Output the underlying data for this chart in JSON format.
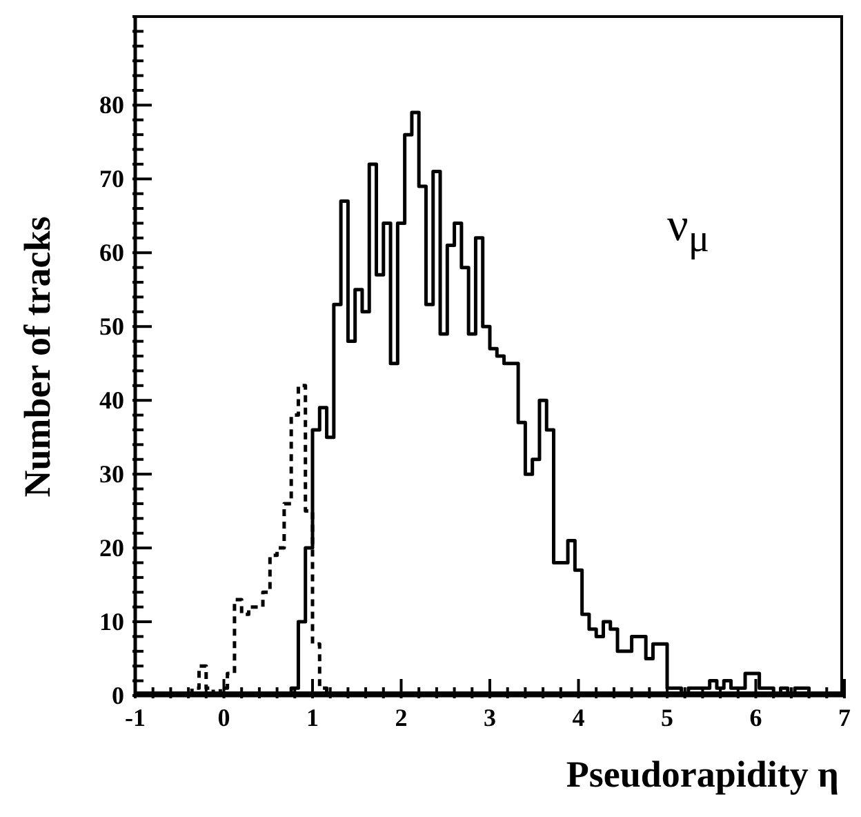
{
  "chart_data": {
    "type": "histogram",
    "xlabel": "Pseudorapidity η",
    "ylabel": "Number of tracks",
    "annotations": [
      "ν$_{μ}$"
    ],
    "bins": [
      -0.36,
      -0.28,
      -0.2,
      -0.12,
      -0.04,
      0.04,
      0.12,
      0.2,
      0.28,
      0.36,
      0.44,
      0.52,
      0.6,
      0.68,
      0.76,
      0.84,
      0.92,
      1.0,
      1.08,
      1.16,
      1.24,
      1.32,
      1.4,
      1.48,
      1.56,
      1.64,
      1.72,
      1.8,
      1.88,
      1.96,
      2.04,
      2.12,
      2.2,
      2.28,
      2.36,
      2.44,
      2.52,
      2.6,
      2.68,
      2.76,
      2.84,
      2.92,
      3.0,
      3.08,
      3.16,
      3.24,
      3.32,
      3.4,
      3.48,
      3.56,
      3.64,
      3.72,
      3.8,
      3.88,
      3.96,
      4.04,
      4.12,
      4.2,
      4.28,
      4.36,
      4.44,
      4.52,
      4.6,
      4.68,
      4.76,
      4.84,
      4.92,
      5.0,
      5.08,
      5.16,
      5.24,
      5.32,
      5.4,
      5.48,
      5.56,
      5.64,
      5.72,
      5.8,
      5.88,
      5.96,
      6.04,
      6.12,
      6.2,
      6.28,
      6.36,
      6.44,
      6.52,
      6.6
    ],
    "series": [
      {
        "color": "#000000",
        "line_style": "dashed",
        "values": [
          1,
          4,
          1,
          0,
          1,
          3,
          13,
          11,
          12,
          12,
          14,
          19,
          20,
          26,
          38,
          42,
          25,
          7,
          1,
          0,
          0,
          0,
          0,
          0,
          0,
          0,
          0,
          0,
          0,
          0,
          0,
          0,
          0,
          0,
          0,
          0,
          0,
          0,
          0,
          0,
          0,
          0,
          0,
          0,
          0,
          0,
          0,
          0,
          0,
          0,
          0,
          0,
          0,
          0,
          0,
          0,
          0,
          0,
          0,
          0,
          0,
          0,
          0,
          0,
          0,
          0,
          0,
          0,
          0,
          0,
          0,
          0,
          0,
          0,
          0,
          0,
          0,
          0,
          0,
          0,
          0,
          0,
          0,
          0,
          0,
          0,
          0
        ]
      },
      {
        "color": "#000000",
        "line_style": "solid",
        "values": [
          0,
          0,
          0,
          0,
          0,
          0,
          0,
          0,
          0,
          0,
          0,
          0,
          0,
          0,
          1,
          10,
          20,
          36,
          39,
          35,
          53,
          67,
          48,
          55,
          52,
          72,
          57,
          64,
          45,
          64,
          76,
          79,
          69,
          53,
          71,
          49,
          61,
          64,
          58,
          49,
          62,
          50,
          47,
          46,
          45,
          45,
          37,
          30,
          32,
          40,
          36,
          18,
          18,
          21,
          17,
          11,
          9,
          8,
          10,
          9,
          6,
          6,
          8,
          8,
          5,
          7,
          7,
          1,
          1,
          0,
          1,
          1,
          1,
          2,
          1,
          2,
          1,
          1,
          3,
          3,
          1,
          1,
          0,
          1,
          0,
          1,
          1
        ]
      }
    ],
    "xlim": [
      -1,
      7
    ],
    "xticks": [
      -1,
      {
        "value": -0.8,
        "label": null
      },
      {
        "value": -0.6,
        "label": null
      },
      {
        "value": -0.4,
        "label": null
      },
      {
        "value": -0.2,
        "label": null
      },
      0,
      {
        "value": 0.2,
        "label": null
      },
      {
        "value": 0.4,
        "label": null
      },
      {
        "value": 0.6,
        "label": null
      },
      {
        "value": 0.8,
        "label": null
      },
      1,
      {
        "value": 1.2,
        "label": null
      },
      {
        "value": 1.4,
        "label": null
      },
      {
        "value": 1.6,
        "label": null
      },
      {
        "value": 1.8,
        "label": null
      },
      2,
      {
        "value": 2.2,
        "label": null
      },
      {
        "value": 2.4,
        "label": null
      },
      {
        "value": 2.6,
        "label": null
      },
      {
        "value": 2.8,
        "label": null
      },
      3,
      {
        "value": 3.2,
        "label": null
      },
      {
        "value": 3.4,
        "label": null
      },
      {
        "value": 3.6,
        "label": null
      },
      {
        "value": 3.8,
        "label": null
      },
      4,
      {
        "value": 4.2,
        "label": null
      },
      {
        "value": 4.4,
        "label": null
      },
      {
        "value": 4.6,
        "label": null
      },
      {
        "value": 4.8,
        "label": null
      },
      5,
      {
        "value": 5.2,
        "label": null
      },
      {
        "value": 5.4,
        "label": null
      },
      {
        "value": 5.6,
        "label": null
      },
      {
        "value": 5.8,
        "label": null
      },
      6,
      {
        "value": 6.2,
        "label": null
      },
      {
        "value": 6.4,
        "label": null
      },
      {
        "value": 6.6,
        "label": null
      },
      {
        "value": 6.8,
        "label": null
      },
      7
    ],
    "ylim": [
      0,
      92
    ],
    "yticks": [
      0,
      {
        "value": 2,
        "label": null
      },
      {
        "value": 4,
        "label": null
      },
      {
        "value": 6,
        "label": null
      },
      {
        "value": 8,
        "label": null
      },
      10,
      {
        "value": 12,
        "label": null
      },
      {
        "value": 14,
        "label": null
      },
      {
        "value": 16,
        "label": null
      },
      {
        "value": 18,
        "label": null
      },
      20,
      {
        "value": 22,
        "label": null
      },
      {
        "value": 24,
        "label": null
      },
      {
        "value": 26,
        "label": null
      },
      {
        "value": 28,
        "label": null
      },
      30,
      {
        "value": 32,
        "label": null
      },
      {
        "value": 34,
        "label": null
      },
      {
        "value": 36,
        "label": null
      },
      {
        "value": 38,
        "label": null
      },
      40,
      {
        "value": 42,
        "label": null
      },
      {
        "value": 44,
        "label": null
      },
      {
        "value": 46,
        "label": null
      },
      {
        "value": 48,
        "label": null
      },
      50,
      {
        "value": 52,
        "label": null
      },
      {
        "value": 54,
        "label": null
      },
      {
        "value": 56,
        "label": null
      },
      {
        "value": 58,
        "label": null
      },
      60,
      {
        "value": 62,
        "label": null
      },
      {
        "value": 64,
        "label": null
      },
      {
        "value": 66,
        "label": null
      },
      {
        "value": 68,
        "label": null
      },
      70,
      {
        "value": 72,
        "label": null
      },
      {
        "value": 74,
        "label": null
      },
      {
        "value": 76,
        "label": null
      },
      {
        "value": 78,
        "label": null
      },
      80,
      {
        "value": 82,
        "label": null
      },
      {
        "value": 84,
        "label": null
      },
      {
        "value": 86,
        "label": null
      },
      {
        "value": 88,
        "label": null
      },
      {
        "value": 90,
        "label": null
      },
      {
        "value": 92,
        "label": null
      }
    ]
  }
}
